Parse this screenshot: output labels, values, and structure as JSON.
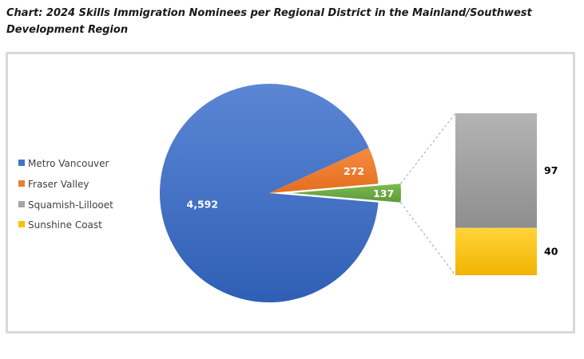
{
  "title": "Chart: 2024 Skills Immigration Nominees per Regional District in the Mainland/Southwest Development Region",
  "chart_data": {
    "type": "pie",
    "subtype": "bar-of-pie",
    "legend_position": "left",
    "series": [
      {
        "name": "Metro Vancouver",
        "value": 4592,
        "label": "4,592",
        "color": "#4472c4"
      },
      {
        "name": "Fraser Valley",
        "value": 272,
        "label": "272",
        "color": "#ed7d31"
      },
      {
        "name": "Squamish-Lillooet",
        "value": 97,
        "label": "97",
        "color": "#a5a5a5"
      },
      {
        "name": "Sunshine Coast",
        "value": 40,
        "label": "40",
        "color": "#ffc000"
      }
    ],
    "other_slice": {
      "value": 137,
      "label": "137",
      "color": "#70ad47",
      "members": [
        "Squamish-Lillooet",
        "Sunshine Coast"
      ]
    }
  }
}
